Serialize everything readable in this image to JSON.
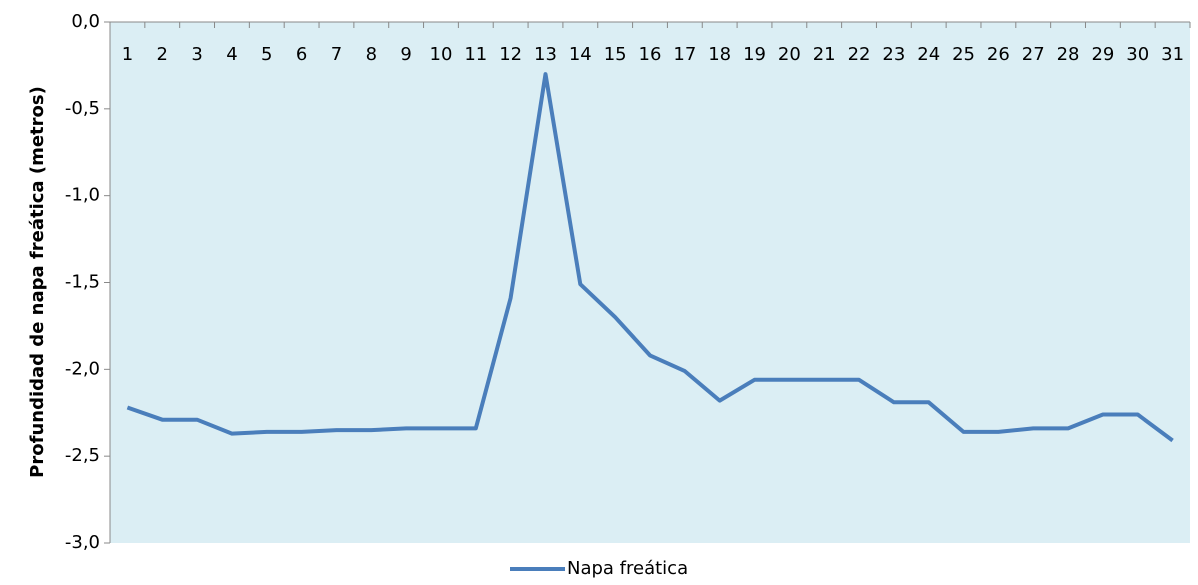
{
  "chart_data": {
    "type": "line",
    "y_label": "Profundidad de napa freática  (metros)",
    "categories": [
      "1",
      "2",
      "3",
      "4",
      "5",
      "6",
      "7",
      "8",
      "9",
      "10",
      "11",
      "12",
      "13",
      "14",
      "15",
      "16",
      "17",
      "18",
      "19",
      "20",
      "21",
      "22",
      "23",
      "24",
      "25",
      "26",
      "27",
      "28",
      "29",
      "30",
      "31"
    ],
    "series": [
      {
        "name": "Napa freática",
        "color": "#4a7ebb",
        "values": [
          -2.22,
          -2.29,
          -2.29,
          -2.37,
          -2.36,
          -2.36,
          -2.35,
          -2.35,
          -2.34,
          -2.34,
          -2.34,
          -1.59,
          -0.3,
          -1.51,
          -1.7,
          -1.92,
          -2.01,
          -2.18,
          -2.06,
          -2.06,
          -2.06,
          -2.06,
          -2.19,
          -2.19,
          -2.36,
          -2.36,
          -2.34,
          -2.34,
          -2.26,
          -2.26,
          -2.41
        ]
      }
    ],
    "ylim": [
      -3,
      0
    ],
    "yticks": [
      {
        "value": 0,
        "label": "0,0"
      },
      {
        "value": -0.5,
        "label": "-0,5"
      },
      {
        "value": -1,
        "label": "-1,0"
      },
      {
        "value": -1.5,
        "label": "-1,5"
      },
      {
        "value": -2,
        "label": "-2,0"
      },
      {
        "value": -2.5,
        "label": "-2,5"
      },
      {
        "value": -3,
        "label": "-3,0"
      }
    ],
    "plot_background": "#dbeef4",
    "legend": "bottom"
  }
}
